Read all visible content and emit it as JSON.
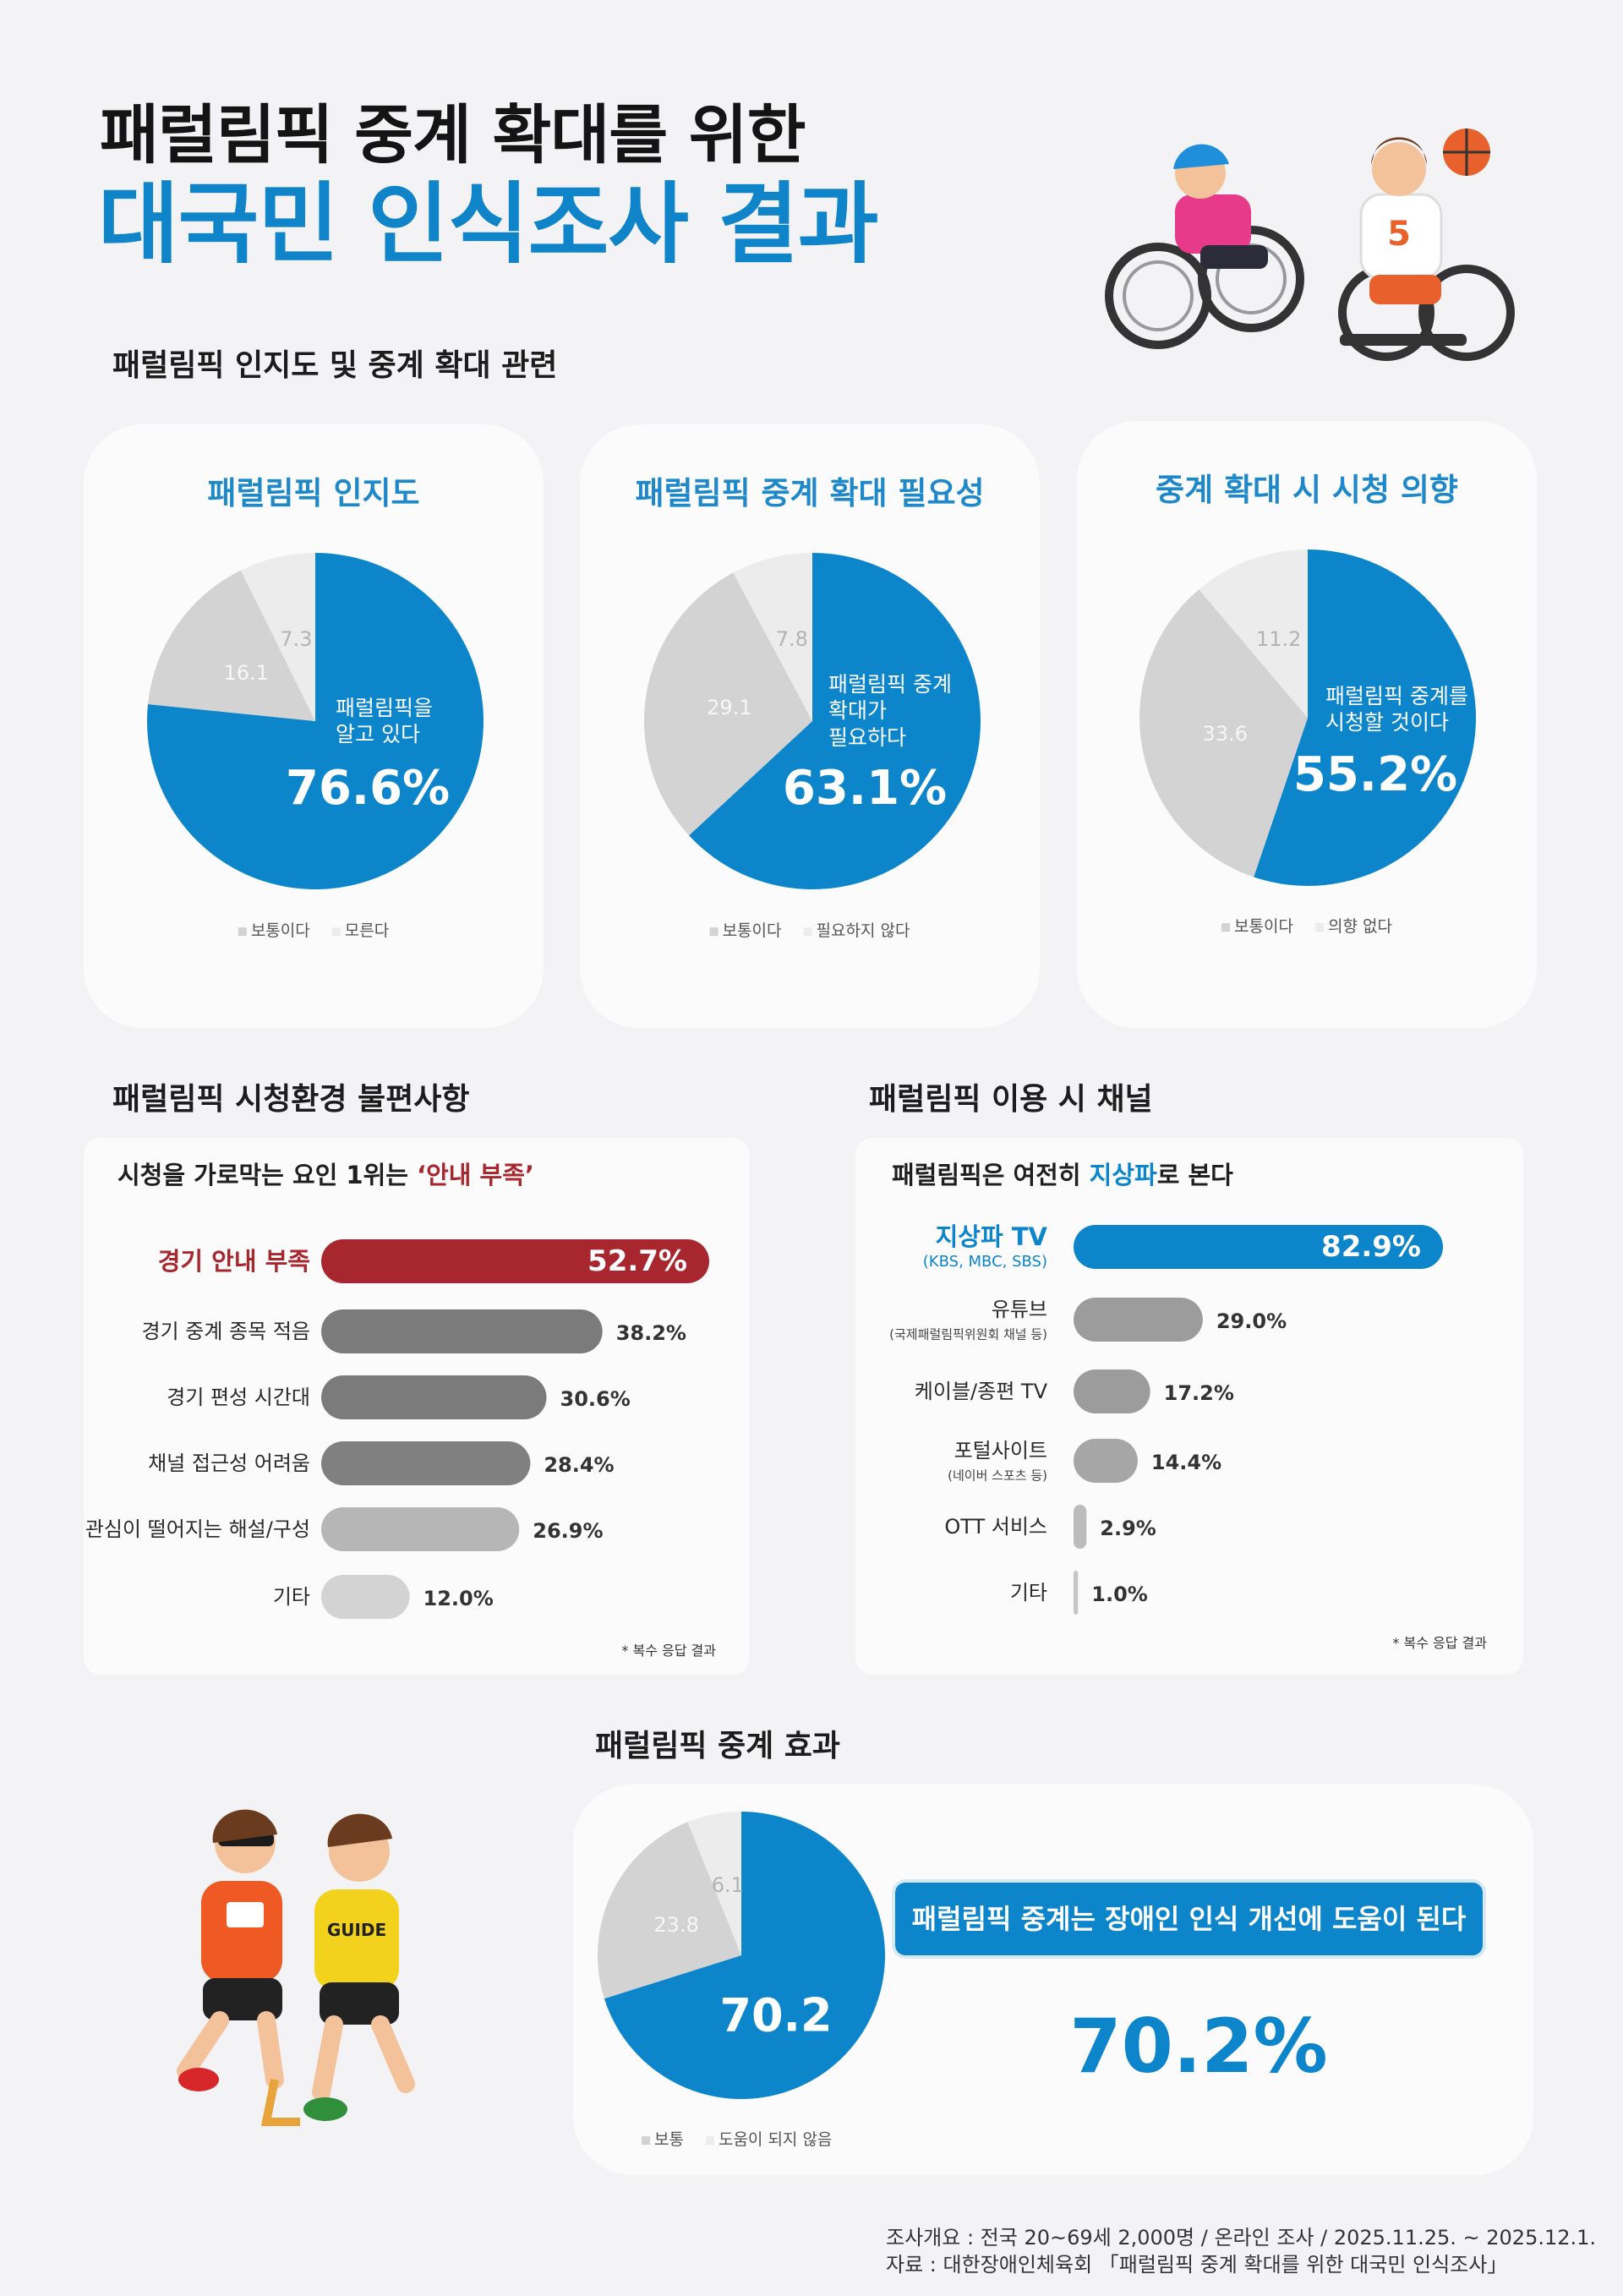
{
  "header": {
    "title_line1": "패럴림픽 중계 확대를 위한",
    "title_line2": "대국민 인식조사 결과"
  },
  "sections": [
    "패럴림픽 인지도 및 중계 확대 관련",
    "패럴림픽 시청환경 불편사항",
    "패럴림픽 이용 시 채널",
    "패럴림픽 중계 효과"
  ],
  "chart_data": [
    {
      "type": "pie",
      "title": "패럴림픽 인지도",
      "categories": [
        "패럴림픽을\n알고 있다",
        "보통이다",
        "모른다"
      ],
      "values": [
        76.6,
        16.1,
        7.3
      ],
      "value_labels": [
        "76.6%",
        "16.1",
        "7.3"
      ],
      "colors": [
        "#0c85cb",
        "#d3d3d3",
        "#ececec"
      ],
      "legend": true
    },
    {
      "type": "pie",
      "title": "패럴림픽 중계 확대 필요성",
      "categories": [
        "패럴림픽 중계\n확대가\n필요하다",
        "보통이다",
        "필요하지 않다"
      ],
      "values": [
        63.1,
        29.1,
        7.8
      ],
      "value_labels": [
        "63.1%",
        "29.1",
        "7.8"
      ],
      "colors": [
        "#0c85cb",
        "#d3d3d3",
        "#ececec"
      ],
      "legend": true
    },
    {
      "type": "pie",
      "title": "중계 확대 시 시청 의향",
      "categories": [
        "패럴림픽 중계를\n시청할 것이다",
        "보통이다",
        "의향 없다"
      ],
      "values": [
        55.2,
        33.6,
        11.2
      ],
      "value_labels": [
        "55.2%",
        "33.6",
        "11.2"
      ],
      "colors": [
        "#0c85cb",
        "#d3d3d3",
        "#ececec"
      ],
      "legend": true
    },
    {
      "type": "bar",
      "orientation": "horizontal",
      "subtitle_parts": [
        {
          "text": "시청을 가로막는 요인 1위는 ",
          "color": "#1f1f1f"
        },
        {
          "text": "‘안내 부족’",
          "color": "#a8262e"
        }
      ],
      "categories": [
        "경기 안내 부족",
        "경기 중계 종목 적음",
        "경기 편성 시간대",
        "채널 접근성 어려움",
        "관심이 떨어지는 해설/구성",
        "기타"
      ],
      "values": [
        52.7,
        38.2,
        30.6,
        28.4,
        26.9,
        12.0
      ],
      "value_labels": [
        "52.7%",
        "38.2%",
        "30.6%",
        "28.4%",
        "26.9%",
        "12.0%"
      ],
      "colors": [
        "#a8262e",
        "#7b7b7b",
        "#7b7b7b",
        "#808080",
        "#b6b6b6",
        "#d3d3d3"
      ],
      "footnote": "* 복수 응답 결과"
    },
    {
      "type": "bar",
      "orientation": "horizontal",
      "subtitle_parts": [
        {
          "text": "패럴림픽은 여전히 ",
          "color": "#1f1f1f"
        },
        {
          "text": "지상파",
          "color": "#0c85cb"
        },
        {
          "text": "로 본다",
          "color": "#1f1f1f"
        }
      ],
      "categories": [
        "지상파 TV",
        "유튜브",
        "케이블/종편 TV",
        "포털사이트",
        "OTT 서비스",
        "기타"
      ],
      "category_notes": [
        "(KBS, MBC, SBS)",
        "(국제패럴림픽위원회 채널 등)",
        null,
        "(네이버 스포츠 등)",
        null,
        null
      ],
      "values": [
        82.9,
        29.0,
        17.2,
        14.4,
        2.9,
        1.0
      ],
      "value_labels": [
        "82.9%",
        "29.0%",
        "17.2%",
        "14.4%",
        "2.9%",
        "1.0%"
      ],
      "colors": [
        "#0c85cb",
        "#9c9c9c",
        "#9c9c9c",
        "#a6a6a6",
        "#bcbcbc",
        "#c6c6c6"
      ],
      "footnote": "* 복수 응답 결과"
    },
    {
      "type": "pie",
      "categories": [
        "패럴림픽 중계는 장애인 인식 개선에 도움이 된다",
        "보통",
        "도움이 되지 않음"
      ],
      "values": [
        70.2,
        23.8,
        6.1
      ],
      "colors": [
        "#0c85cb",
        "#d3d3d3",
        "#ececec"
      ],
      "legend": true,
      "callout_value_label": "70.2%"
    }
  ],
  "footer": {
    "survey": "조사개요 : 전국 20~69세 2,000명 / 온라인 조사 / 2025.11.25. ~ 2025.12.1.",
    "source": "자료 : 대한장애인체육회 「패럴림픽 중계 확대를 위한 대국민 인식조사」"
  }
}
